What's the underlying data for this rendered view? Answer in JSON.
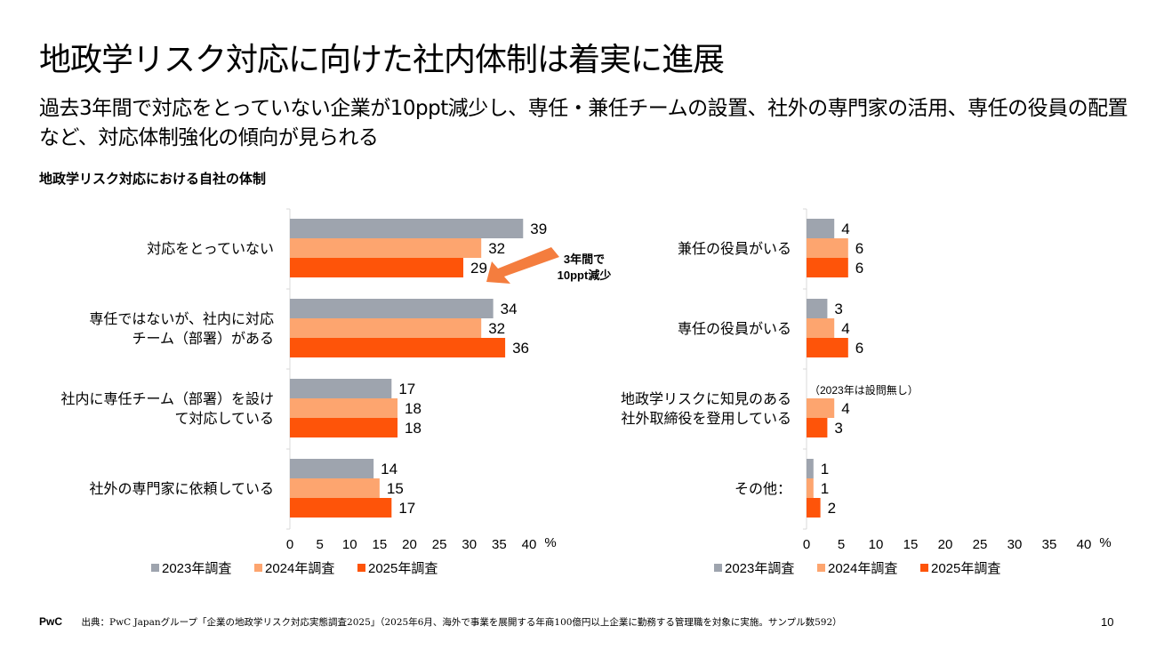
{
  "title": "地政学リスク対応に向けた社内体制は着実に進展",
  "subtitle": "過去3年間で対応をとっていない企業が10ppt減少し、専任・兼任チームの設置、社外の専門家の活用、専任の役員の配置など、対応体制強化の傾向が見られる",
  "chart_section_title": "地政学リスク対応における自社の体制",
  "colors": {
    "s2023": "#9ea4ae",
    "s2024": "#fda56f",
    "s2025": "#fe5409",
    "axis": "#d9d9d9",
    "arrow": "#f47d3e"
  },
  "chart_data": [
    {
      "type": "bar",
      "orientation": "horizontal",
      "categories": [
        "対応をとっていない",
        "専任ではないが、社内に対応\nチーム（部署）がある",
        "社内に専任チーム（部署）を設け\nて対応している",
        "社外の専門家に依頼している"
      ],
      "series": [
        {
          "name": "2023年調査",
          "values": [
            39,
            34,
            17,
            14
          ]
        },
        {
          "name": "2024年調査",
          "values": [
            32,
            32,
            18,
            15
          ]
        },
        {
          "name": "2025年調査",
          "values": [
            29,
            36,
            18,
            17
          ]
        }
      ],
      "xlim": [
        0,
        40
      ],
      "xticks": [
        0,
        5,
        10,
        15,
        20,
        25,
        30,
        35,
        40
      ],
      "xunit": "%",
      "legend": "bottom",
      "annotation": {
        "text": [
          "3年間で",
          "10ppt減少"
        ],
        "arrow": "from 39 to 29 on 対応をとっていない"
      }
    },
    {
      "type": "bar",
      "orientation": "horizontal",
      "categories": [
        "兼任の役員がいる",
        "専任の役員がいる",
        "地政学リスクに知見のある\n社外取締役を登用している",
        "その他："
      ],
      "series": [
        {
          "name": "2023年調査",
          "values": [
            4,
            3,
            null,
            1
          ]
        },
        {
          "name": "2024年調査",
          "values": [
            6,
            4,
            4,
            1
          ]
        },
        {
          "name": "2025年調査",
          "values": [
            6,
            6,
            3,
            2
          ]
        }
      ],
      "xlim": [
        0,
        40
      ],
      "xticks": [
        0,
        5,
        10,
        15,
        20,
        25,
        30,
        35,
        40
      ],
      "xunit": "%",
      "legend": "bottom",
      "note": "（2023年は設問無し）"
    }
  ],
  "footer": {
    "logo": "PwC",
    "source": "出典：PwC Japanグループ「企業の地政学リスク対応実態調査2025」（2025年6月、海外で事業を展開する年商100億円以上企業に勤務する管理職を対象に実施。サンプル数592）",
    "page": "10"
  }
}
